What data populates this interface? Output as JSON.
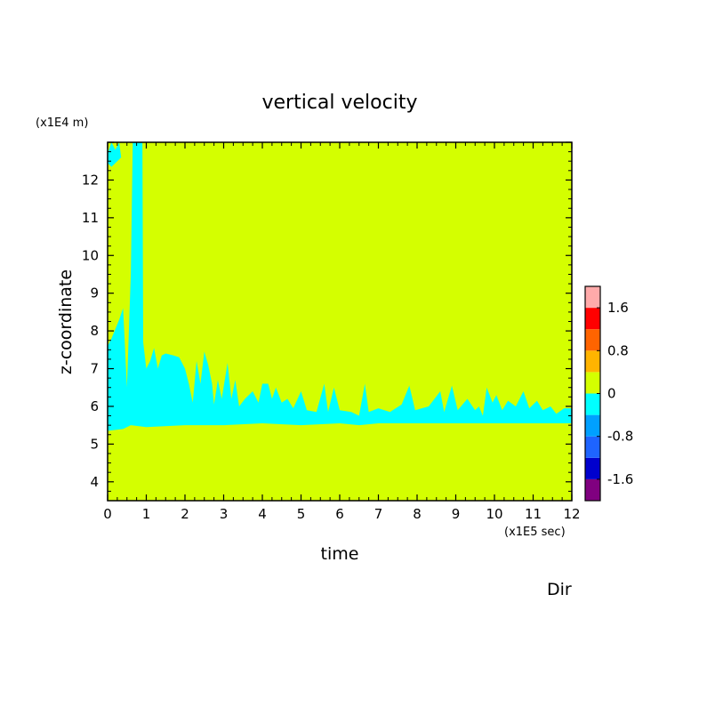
{
  "chart_data": {
    "type": "heatmap",
    "title": "vertical velocity",
    "xlabel": "time",
    "ylabel": "z-coordinate",
    "x_unit": "(x1E5 sec)",
    "y_unit": "(x1E4 m)",
    "xlim": [
      0,
      12
    ],
    "ylim": [
      3.5,
      13
    ],
    "x_ticks": [
      "0",
      "1",
      "2",
      "3",
      "4",
      "5",
      "6",
      "7",
      "8",
      "9",
      "10",
      "11",
      "12"
    ],
    "y_ticks": [
      "4",
      "5",
      "6",
      "7",
      "8",
      "9",
      "10",
      "11",
      "12"
    ],
    "corner_label": "Dir",
    "grid": false,
    "background_level": {
      "range": [
        0,
        0.4
      ],
      "color": "#d4ff00"
    },
    "colorbar": {
      "placement": "right",
      "levels": [
        -2.0,
        -1.6,
        -1.2,
        -0.8,
        -0.4,
        0,
        0.4,
        0.8,
        1.2,
        1.6,
        2.0
      ],
      "colors": [
        "#800080",
        "#0000cd",
        "#1e64ff",
        "#00a0ff",
        "#00ffff",
        "#d4ff00",
        "#ffb400",
        "#ff6400",
        "#ff0000",
        "#ffaaaa"
      ],
      "labels": [
        "1.6",
        "0.8",
        "0",
        "-0.8",
        "-1.6"
      ],
      "label_values": [
        1.6,
        0.8,
        0,
        -0.8,
        -1.6
      ]
    },
    "negative_region": {
      "level_range": [
        -0.4,
        0
      ],
      "color": "#00ffff",
      "lower_boundary": [
        [
          0,
          5.35
        ],
        [
          0.4,
          5.4
        ],
        [
          0.5,
          5.45
        ],
        [
          0.6,
          5.5
        ],
        [
          1.0,
          5.45
        ],
        [
          2.0,
          5.5
        ],
        [
          3.0,
          5.5
        ],
        [
          4.0,
          5.55
        ],
        [
          5.0,
          5.5
        ],
        [
          6.0,
          5.55
        ],
        [
          6.5,
          5.5
        ],
        [
          7.0,
          5.55
        ],
        [
          8.0,
          5.55
        ],
        [
          9.0,
          5.55
        ],
        [
          10.0,
          5.55
        ],
        [
          11.0,
          5.55
        ],
        [
          12.0,
          5.55
        ]
      ],
      "upper_boundary": [
        [
          0,
          7.6
        ],
        [
          0.1,
          7.8
        ],
        [
          0.2,
          8.05
        ],
        [
          0.3,
          8.3
        ],
        [
          0.4,
          8.6
        ],
        [
          0.5,
          6.5
        ],
        [
          0.6,
          9.5
        ],
        [
          0.65,
          13
        ],
        [
          0.9,
          13
        ],
        [
          0.92,
          7.7
        ],
        [
          1.0,
          7.0
        ],
        [
          1.1,
          7.2
        ],
        [
          1.2,
          7.55
        ],
        [
          1.3,
          7.0
        ],
        [
          1.4,
          7.35
        ],
        [
          1.5,
          7.4
        ],
        [
          1.7,
          7.35
        ],
        [
          1.85,
          7.3
        ],
        [
          2.0,
          7.0
        ],
        [
          2.1,
          6.6
        ],
        [
          2.2,
          6.1
        ],
        [
          2.3,
          7.2
        ],
        [
          2.4,
          6.6
        ],
        [
          2.5,
          7.45
        ],
        [
          2.6,
          7.1
        ],
        [
          2.7,
          6.6
        ],
        [
          2.75,
          6.05
        ],
        [
          2.85,
          6.7
        ],
        [
          2.95,
          6.2
        ],
        [
          3.1,
          7.15
        ],
        [
          3.2,
          6.2
        ],
        [
          3.3,
          6.7
        ],
        [
          3.4,
          6.0
        ],
        [
          3.55,
          6.2
        ],
        [
          3.75,
          6.4
        ],
        [
          3.9,
          6.1
        ],
        [
          4.0,
          6.6
        ],
        [
          4.15,
          6.6
        ],
        [
          4.25,
          6.2
        ],
        [
          4.35,
          6.5
        ],
        [
          4.5,
          6.1
        ],
        [
          4.65,
          6.2
        ],
        [
          4.8,
          5.95
        ],
        [
          5.0,
          6.4
        ],
        [
          5.15,
          5.9
        ],
        [
          5.4,
          5.85
        ],
        [
          5.6,
          6.6
        ],
        [
          5.7,
          5.85
        ],
        [
          5.85,
          6.5
        ],
        [
          6.0,
          5.9
        ],
        [
          6.3,
          5.85
        ],
        [
          6.5,
          5.75
        ],
        [
          6.65,
          6.6
        ],
        [
          6.75,
          5.85
        ],
        [
          7.0,
          5.95
        ],
        [
          7.3,
          5.85
        ],
        [
          7.6,
          6.05
        ],
        [
          7.8,
          6.55
        ],
        [
          7.95,
          5.9
        ],
        [
          8.3,
          6.0
        ],
        [
          8.6,
          6.4
        ],
        [
          8.7,
          5.85
        ],
        [
          8.9,
          6.55
        ],
        [
          9.05,
          5.9
        ],
        [
          9.3,
          6.2
        ],
        [
          9.5,
          5.9
        ],
        [
          9.6,
          6.0
        ],
        [
          9.7,
          5.75
        ],
        [
          9.8,
          6.5
        ],
        [
          9.95,
          6.1
        ],
        [
          10.05,
          6.3
        ],
        [
          10.2,
          5.9
        ],
        [
          10.35,
          6.15
        ],
        [
          10.55,
          6.0
        ],
        [
          10.75,
          6.4
        ],
        [
          10.9,
          5.95
        ],
        [
          11.1,
          6.15
        ],
        [
          11.25,
          5.9
        ],
        [
          11.45,
          6.0
        ],
        [
          11.6,
          5.8
        ],
        [
          11.8,
          5.95
        ],
        [
          12.0,
          5.95
        ]
      ],
      "extra_patches": [
        [
          [
            0,
            12.7
          ],
          [
            0.1,
            13
          ],
          [
            0.2,
            12.8
          ],
          [
            0.3,
            13
          ],
          [
            0.35,
            12.6
          ],
          [
            0.1,
            12.35
          ],
          [
            0,
            12.45
          ]
        ]
      ]
    }
  }
}
